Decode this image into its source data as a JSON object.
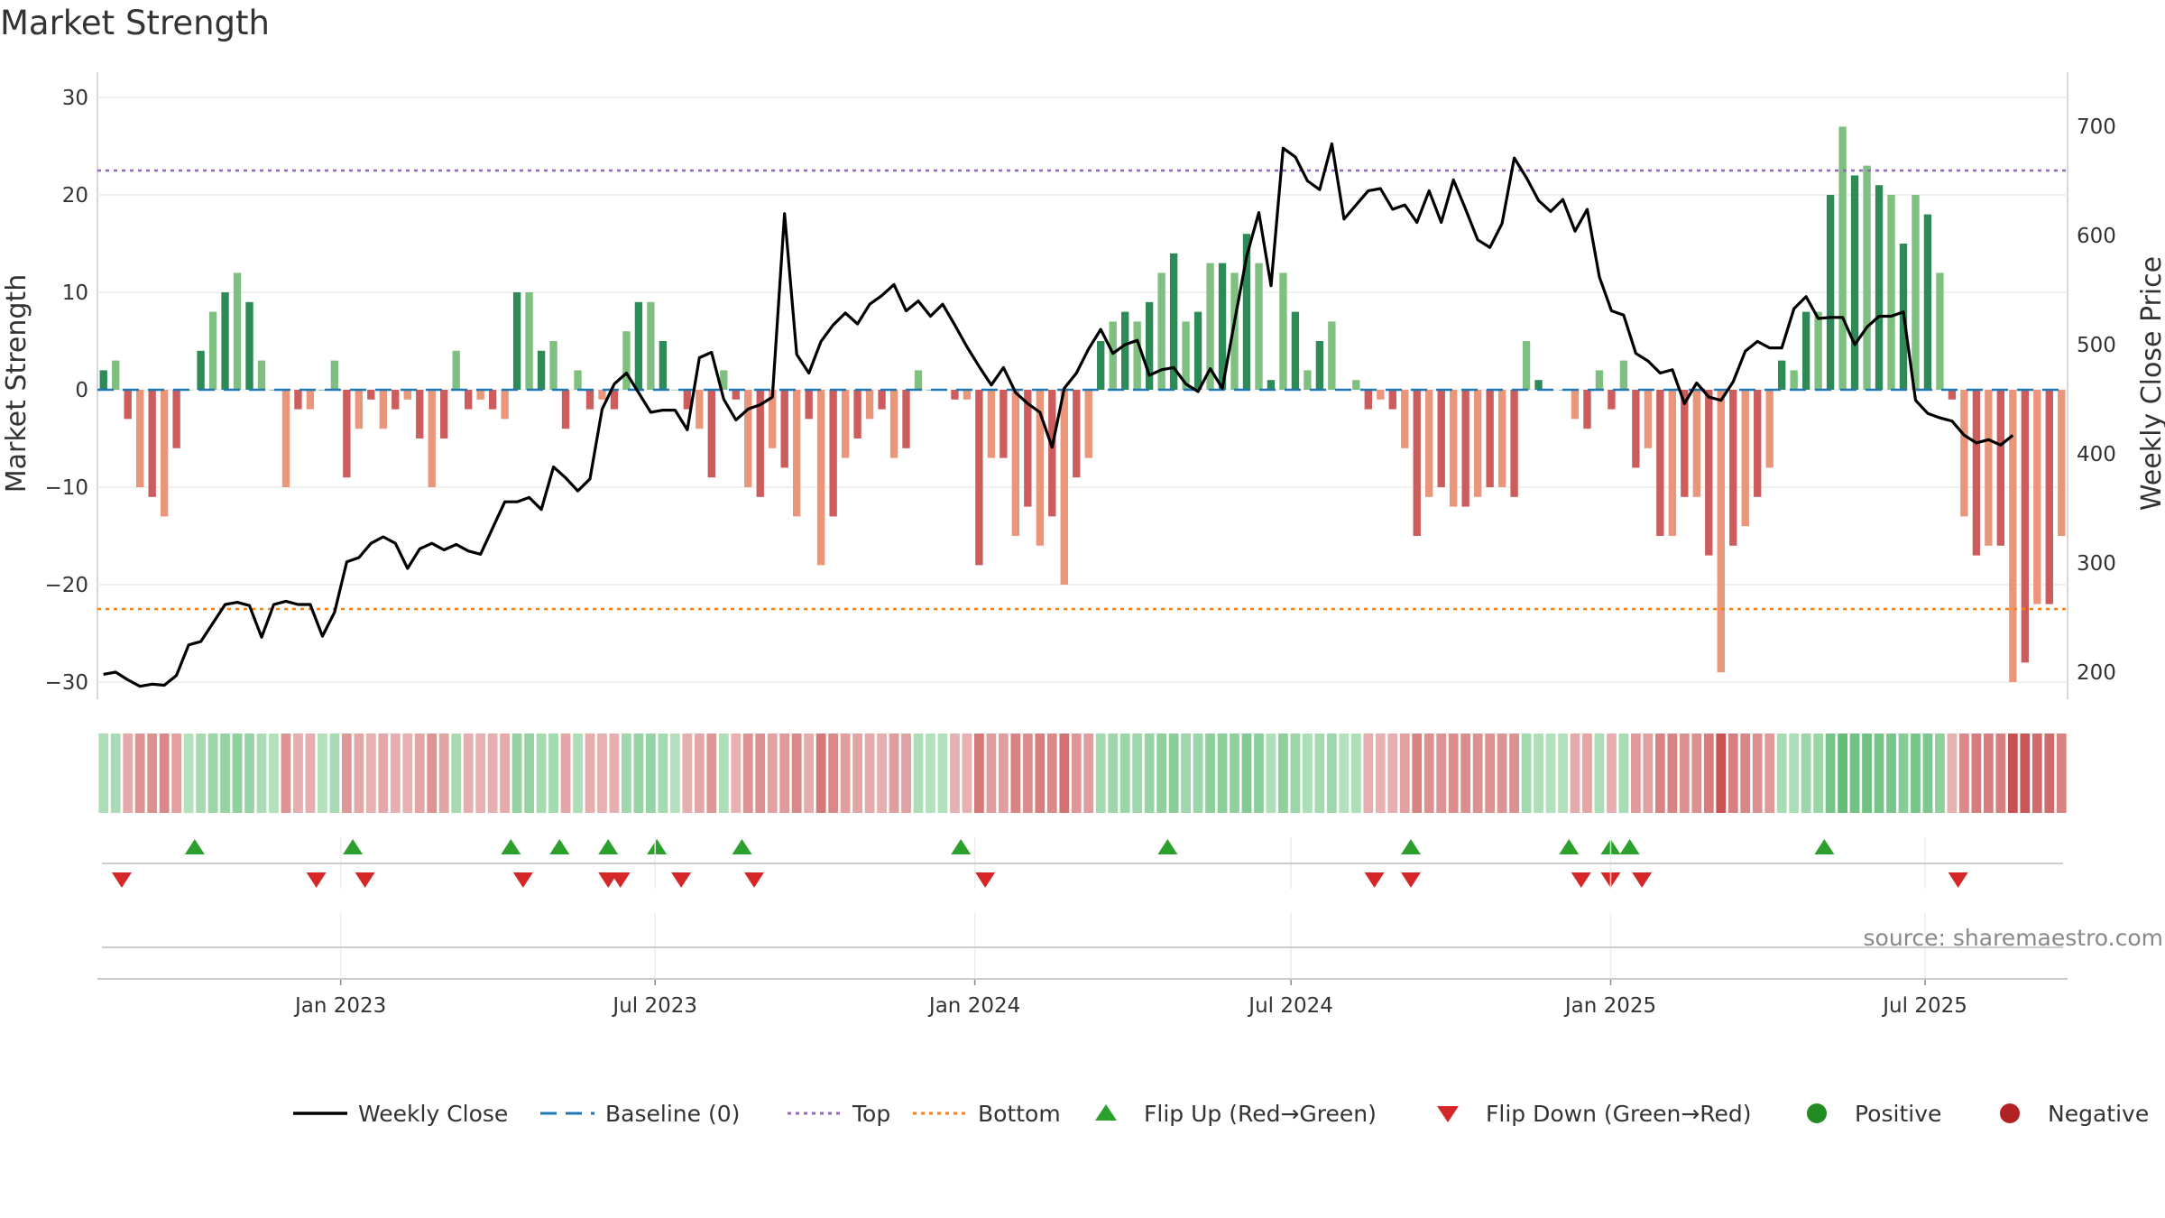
{
  "chart_data": {
    "type": "bar",
    "title": "Market Strength",
    "ylabel_left": "Market Strength",
    "ylabel_right": "Weekly Close Price",
    "ylim_left": [
      -30,
      30
    ],
    "yticks_left": [
      "30",
      "20",
      "10",
      "0",
      "−10",
      "−20",
      "−30"
    ],
    "ylim_right": [
      200,
      700
    ],
    "yticks_right": [
      "700",
      "600",
      "500",
      "400",
      "300",
      "200"
    ],
    "x_start": "2022-08-14",
    "x_end": "2025-09-21",
    "x_ticks": [
      {
        "date": "2023-01-01",
        "label": "Jan 2023"
      },
      {
        "date": "2023-07-01",
        "label": "Jul 2023"
      },
      {
        "date": "2024-01-01",
        "label": "Jan 2024"
      },
      {
        "date": "2024-07-01",
        "label": "Jul 2024"
      },
      {
        "date": "2025-01-01",
        "label": "Jan 2025"
      },
      {
        "date": "2025-07-01",
        "label": "Jul 2025"
      }
    ],
    "top": 22.5,
    "bottom": -22.5,
    "baseline": 0,
    "strength": [
      2,
      3,
      -3,
      -10,
      -11,
      -13,
      -6,
      0,
      4,
      8,
      10,
      12,
      9,
      3,
      0,
      -10,
      -2,
      -2,
      0,
      3,
      -9,
      -4,
      -1,
      -4,
      -2,
      -1,
      -5,
      -10,
      -5,
      4,
      -2,
      -1,
      -2,
      -3,
      10,
      10,
      4,
      5,
      -4,
      2,
      -2,
      -1,
      -2,
      6,
      9,
      9,
      5,
      0,
      -2,
      -4,
      -9,
      2,
      -1,
      -10,
      -11,
      -6,
      -8,
      -13,
      -3,
      -18,
      -13,
      -7,
      -5,
      -3,
      -2,
      -7,
      -6,
      2,
      0,
      0,
      -1,
      -1,
      -18,
      -7,
      -7,
      -15,
      -12,
      -16,
      -13,
      -20,
      -9,
      -7,
      5,
      7,
      8,
      7,
      9,
      12,
      14,
      7,
      8,
      13,
      13,
      12,
      16,
      13,
      1,
      12,
      8,
      2,
      5,
      7,
      0,
      1,
      -2,
      -1,
      -2,
      -6,
      -15,
      -11,
      -10,
      -12,
      -12,
      -11,
      -10,
      -10,
      -11,
      5,
      1,
      0,
      0,
      -3,
      -4,
      2,
      -2,
      3,
      -8,
      -6,
      -15,
      -15,
      -11,
      -11,
      -17,
      -29,
      -16,
      -14,
      -11,
      -8,
      3,
      2,
      8,
      8,
      20,
      27,
      22,
      23,
      21,
      20,
      15,
      20,
      18,
      12,
      -1,
      -13,
      -17,
      -16,
      -16,
      -30,
      -28,
      -22,
      -22,
      -15
    ],
    "close": [
      198,
      200,
      193,
      187,
      189,
      188,
      197,
      225,
      228,
      245,
      262,
      264,
      261,
      232,
      262,
      265,
      262,
      262,
      233,
      255,
      301,
      305,
      318,
      324,
      318,
      295,
      313,
      318,
      312,
      317,
      311,
      308,
      332,
      356,
      356,
      360,
      349,
      388,
      378,
      366,
      377,
      441,
      464,
      474,
      456,
      438,
      440,
      440,
      422,
      488,
      493,
      450,
      431,
      441,
      445,
      452,
      620,
      491,
      474,
      503,
      518,
      529,
      519,
      537,
      545,
      555,
      531,
      540,
      526,
      537,
      518,
      498,
      480,
      463,
      479,
      456,
      446,
      438,
      406,
      460,
      474,
      496,
      514,
      492,
      500,
      504,
      472,
      477,
      479,
      464,
      457,
      478,
      460,
      521,
      581,
      621,
      554,
      680,
      672,
      650,
      642,
      684,
      615,
      628,
      641,
      643,
      624,
      628,
      612,
      641,
      612,
      651,
      624,
      596,
      589,
      611,
      671,
      653,
      632,
      622,
      633,
      604,
      624,
      562,
      531,
      527,
      492,
      485,
      474,
      477,
      446,
      465,
      452,
      449,
      466,
      494,
      503,
      497,
      497,
      533,
      544,
      524,
      525,
      525,
      500,
      516,
      526,
      526,
      530,
      449,
      437,
      433,
      430,
      417,
      410,
      413,
      408,
      417
    ],
    "flip_up_dates": [
      "2022-10-09",
      "2023-01-08",
      "2023-04-09",
      "2023-05-07",
      "2023-06-04",
      "2023-07-02",
      "2023-08-20",
      "2023-12-24",
      "2024-04-21",
      "2024-09-08",
      "2024-12-08",
      "2025-01-01",
      "2025-01-12",
      "2025-05-04"
    ],
    "flip_down_dates": [
      "2022-08-28",
      "2022-12-18",
      "2023-01-15",
      "2023-04-16",
      "2023-06-04",
      "2023-06-11",
      "2023-07-16",
      "2023-08-27",
      "2024-01-07",
      "2024-08-18",
      "2024-09-08",
      "2024-12-15",
      "2025-01-01",
      "2025-01-19",
      "2025-07-20"
    ]
  },
  "colors": {
    "pos_dark": "#2e8b57",
    "pos_light": "#7fbf7f",
    "neg_dark": "#cd5c5c",
    "neg_light": "#e9967a",
    "line": "#000000",
    "baseline": "#1f77b4",
    "top": "#9467bd",
    "bottom": "#ff7f0e",
    "flip_up": "#2ca02c",
    "flip_down": "#d62728",
    "positive": "#228b22",
    "negative": "#b22222"
  },
  "legend": {
    "weekly_close": "Weekly Close",
    "baseline": "Baseline (0)",
    "top": "Top",
    "bottom": "Bottom",
    "flip_up": "Flip Up (Red→Green)",
    "flip_down": "Flip Down (Green→Red)",
    "positive": "Positive",
    "negative": "Negative"
  },
  "source": "source: sharemaestro.com"
}
